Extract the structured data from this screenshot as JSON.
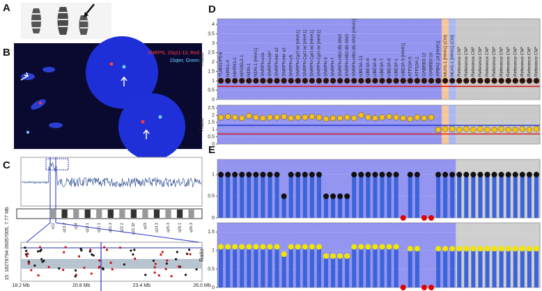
{
  "panels": {
    "a": {
      "label": "A"
    },
    "b": {
      "label": "B",
      "legend": [
        {
          "text": "SNRPN, 15q11-13, Red",
          "color": "#ff3b3b"
        },
        {
          "text": "15qter, Green",
          "color": "#6fd3ff"
        }
      ]
    },
    "c": {
      "label": "C",
      "bands": [
        "q12",
        "q13.2",
        "q14",
        "q15.1",
        "q21.1",
        "q21.3",
        "q22.2",
        "q22.32",
        "q23",
        "q24.3",
        "q25.3",
        "q26.1",
        "q26.3"
      ],
      "axis_labels": [
        "18.2 Mb",
        "20.8 Mb",
        "23.4 Mb",
        "26.0 Mb"
      ],
      "region": "15: 18279794-26057005, 7.77 Mb"
    }
  },
  "chart_data": [
    {
      "type": "dot",
      "panel_label": "D",
      "y_label": "Ratio",
      "categories": [
        "TUBGCP5-8",
        "NIPA1-4",
        "MKRN3-1",
        "MAGEL2-1",
        "NDN-1",
        "NDN-1 [HHA1]",
        "SNRPN-u1b",
        "SNRPN-u1b*",
        "SNRPN-intr u2",
        "SNRPN-intr u2",
        "SNRPN-u5",
        "SNRPN-CpG isl [HHA1]",
        "SNRPN-CpG isl [HHA1]",
        "SNRPN-CpG isl [HHA1]",
        "SNRPN-CpG isl [HHA1]",
        "SNRPN-3",
        "SNRPN-7",
        "SNRPN-HB2-85-SNO",
        "SNRPN-HB2-85-SNO",
        "SNRPN-HB2-85-SNO [HHA1]",
        "UBE3A-13",
        "UBE3A-9",
        "UBE3A-8",
        "UBE3A-7",
        "UBE3A-6",
        "UBE3A-1",
        "UBE3A-5 [HHA1]",
        "ATP10A-5",
        "ATP10A-1",
        "GABRB3-12",
        "GABRB3-10",
        "APBA2-14 [HHA1]",
        "MLH1-1 [HHA1] (Ctrl)",
        "MLH1-1 [HHA1] (Ctrl)",
        "Reference CM*",
        "Reference CM*",
        "Reference CM*",
        "Reference CM*",
        "Reference CM*",
        "Reference CM*",
        "Reference CM*",
        "Reference CM*",
        "Reference CM*",
        "Reference CM*",
        "Reference CM*",
        "Reference CM*"
      ],
      "band_colors": [
        "#9395f0",
        "#9395f0",
        "#9395f0",
        "#9395f0",
        "#9395f0",
        "#9395f0",
        "#9395f0",
        "#9395f0",
        "#9395f0",
        "#9395f0",
        "#9395f0",
        "#9395f0",
        "#9395f0",
        "#9395f0",
        "#9395f0",
        "#9395f0",
        "#9395f0",
        "#9395f0",
        "#9395f0",
        "#9395f0",
        "#9395f0",
        "#9395f0",
        "#9395f0",
        "#9395f0",
        "#9395f0",
        "#9395f0",
        "#9395f0",
        "#9395f0",
        "#9395f0",
        "#9395f0",
        "#9395f0",
        "#9395f0",
        "#f6c69b",
        "#aab8f4",
        "#c9c9c9",
        "#c9c9c9",
        "#c9c9c9",
        "#c9c9c9",
        "#c9c9c9",
        "#c9c9c9",
        "#c9c9c9",
        "#c9c9c9",
        "#c9c9c9",
        "#c9c9c9",
        "#c9c9c9",
        "#c9c9c9"
      ],
      "ylim": [
        0,
        4.3
      ],
      "yticks": [
        0,
        0.5,
        1,
        1.5,
        2,
        2.5,
        3,
        3.5,
        4
      ],
      "grid": true,
      "threshold_lines": [
        {
          "value": 0.7,
          "color": "#e01010"
        }
      ],
      "series": [
        {
          "color": "#2a1010",
          "values": [
            1,
            1,
            1,
            1,
            1,
            1,
            1,
            1,
            1,
            1,
            1,
            1,
            1,
            1,
            1,
            1,
            1,
            1,
            1,
            1,
            1,
            1,
            1,
            1,
            1,
            1,
            1,
            1,
            1,
            1,
            1,
            1,
            1,
            1,
            1,
            1,
            1,
            1,
            1,
            1,
            1,
            1,
            1,
            1,
            1,
            1
          ]
        }
      ]
    },
    {
      "type": "dot",
      "y_label": "Ratio",
      "band_colors": [
        "#9395f0",
        "#9395f0",
        "#9395f0",
        "#9395f0",
        "#9395f0",
        "#9395f0",
        "#9395f0",
        "#9395f0",
        "#9395f0",
        "#9395f0",
        "#9395f0",
        "#9395f0",
        "#9395f0",
        "#9395f0",
        "#9395f0",
        "#9395f0",
        "#9395f0",
        "#9395f0",
        "#9395f0",
        "#9395f0",
        "#9395f0",
        "#9395f0",
        "#9395f0",
        "#9395f0",
        "#9395f0",
        "#9395f0",
        "#9395f0",
        "#9395f0",
        "#9395f0",
        "#9395f0",
        "#9395f0",
        "#9395f0",
        "#f6c69b",
        "#aab8f4",
        "#c9c9c9",
        "#c9c9c9",
        "#c9c9c9",
        "#c9c9c9",
        "#c9c9c9",
        "#c9c9c9",
        "#c9c9c9",
        "#c9c9c9",
        "#c9c9c9",
        "#c9c9c9",
        "#c9c9c9",
        "#c9c9c9"
      ],
      "ylim": [
        0,
        2.7
      ],
      "yticks": [
        0,
        0.5,
        1,
        1.5,
        2,
        2.5
      ],
      "grid": true,
      "threshold_lines": [
        {
          "value": 0.7,
          "color": "#e01010"
        },
        {
          "value": 1.3,
          "color": "#1a2fd0"
        }
      ],
      "series": [
        {
          "color": "#f4c21a",
          "values": [
            1.85,
            1.9,
            1.85,
            1.8,
            1.95,
            1.85,
            1.8,
            1.85,
            1.85,
            1.9,
            1.8,
            1.85,
            1.85,
            1.9,
            1.85,
            1.75,
            1.8,
            1.8,
            1.85,
            1.8,
            2.0,
            1.85,
            1.8,
            1.85,
            1.9,
            1.85,
            1.8,
            1.75,
            1.85,
            1.8,
            1.85,
            1.0,
            1.05,
            1.05,
            1.0,
            1.05,
            1.0,
            1.05,
            1.0,
            1.0,
            1.05,
            1.0,
            1.0,
            1.05,
            1.0,
            1.05
          ]
        }
      ]
    },
    {
      "type": "bar",
      "panel_label": "E",
      "band_colors": [
        "#9395f0",
        "#9395f0",
        "#9395f0",
        "#9395f0",
        "#9395f0",
        "#9395f0",
        "#9395f0",
        "#9395f0",
        "#9395f0",
        "#9395f0",
        "#9395f0",
        "#9395f0",
        "#9395f0",
        "#9395f0",
        "#9395f0",
        "#9395f0",
        "#9395f0",
        "#9395f0",
        "#9395f0",
        "#9395f0",
        "#9395f0",
        "#9395f0",
        "#9395f0",
        "#9395f0",
        "#9395f0",
        "#9395f0",
        "#9395f0",
        "#9395f0",
        "#9395f0",
        "#9395f0",
        "#9395f0",
        "#9395f0",
        "#9395f0",
        "#9395f0",
        "#cfcfcf",
        "#cfcfcf",
        "#cfcfcf",
        "#cfcfcf",
        "#cfcfcf",
        "#cfcfcf",
        "#cfcfcf",
        "#cfcfcf",
        "#cfcfcf",
        "#cfcfcf",
        "#cfcfcf",
        "#cfcfcf"
      ],
      "ylim": [
        0,
        1.35
      ],
      "yticks": [
        0,
        0.5,
        1
      ],
      "grid": true,
      "bar_color": "#3d63d8",
      "series": [
        {
          "color": "#111111",
          "values": [
            1,
            1,
            1,
            1,
            1,
            1,
            1,
            1,
            1,
            0.5,
            1,
            1,
            1,
            1,
            1,
            0.5,
            0.5,
            0.5,
            0.5,
            1,
            1,
            1,
            1,
            1,
            1,
            1,
            0,
            1,
            1,
            0,
            0,
            1,
            1,
            1,
            1,
            1,
            1,
            1,
            1,
            1,
            1,
            1,
            1,
            1,
            1,
            1
          ],
          "point_colors": [
            "#111111",
            "#111111",
            "#111111",
            "#111111",
            "#111111",
            "#111111",
            "#111111",
            "#111111",
            "#111111",
            "#111111",
            "#111111",
            "#111111",
            "#111111",
            "#111111",
            "#111111",
            "#111111",
            "#111111",
            "#111111",
            "#111111",
            "#111111",
            "#111111",
            "#111111",
            "#111111",
            "#111111",
            "#111111",
            "#111111",
            "#e00000",
            "#111111",
            "#111111",
            "#e00000",
            "#e00000",
            "#111111",
            "#111111",
            "#111111",
            "#111111",
            "#111111",
            "#111111",
            "#111111",
            "#111111",
            "#111111",
            "#111111",
            "#111111",
            "#111111",
            "#111111",
            "#111111",
            "#111111"
          ]
        }
      ]
    },
    {
      "type": "bar",
      "y_label": "Ratio",
      "band_colors": [
        "#9395f0",
        "#9395f0",
        "#9395f0",
        "#9395f0",
        "#9395f0",
        "#9395f0",
        "#9395f0",
        "#9395f0",
        "#9395f0",
        "#9395f0",
        "#9395f0",
        "#9395f0",
        "#9395f0",
        "#9395f0",
        "#9395f0",
        "#9395f0",
        "#9395f0",
        "#9395f0",
        "#9395f0",
        "#9395f0",
        "#9395f0",
        "#9395f0",
        "#9395f0",
        "#9395f0",
        "#9395f0",
        "#9395f0",
        "#9395f0",
        "#9395f0",
        "#9395f0",
        "#9395f0",
        "#9395f0",
        "#9395f0",
        "#9395f0",
        "#9395f0",
        "#cfcfcf",
        "#cfcfcf",
        "#cfcfcf",
        "#cfcfcf",
        "#cfcfcf",
        "#cfcfcf",
        "#cfcfcf",
        "#cfcfcf",
        "#cfcfcf",
        "#cfcfcf",
        "#cfcfcf",
        "#cfcfcf"
      ],
      "ylim": [
        0,
        1.75
      ],
      "yticks": [
        0,
        0.5,
        1,
        1.5
      ],
      "grid": true,
      "bar_color": "#3d63d8",
      "series": [
        {
          "color": "#f2e600",
          "values": [
            1.1,
            1.1,
            1.1,
            1.1,
            1.1,
            1.1,
            1.1,
            1.1,
            1.1,
            0.9,
            1.1,
            1.1,
            1.1,
            1.1,
            1.1,
            0.85,
            0.85,
            0.85,
            0.85,
            1.1,
            1.1,
            1.1,
            1.1,
            1.1,
            1.1,
            1.1,
            0,
            1.05,
            1.05,
            0,
            0,
            1.05,
            1.05,
            1.05,
            1.05,
            1.05,
            1.05,
            1.05,
            1.05,
            1.05,
            1.05,
            1.05,
            1.05,
            1.05,
            1.05,
            1.05
          ],
          "point_colors": [
            "#f2e600",
            "#f2e600",
            "#f2e600",
            "#f2e600",
            "#f2e600",
            "#f2e600",
            "#f2e600",
            "#f2e600",
            "#f2e600",
            "#f2e600",
            "#f2e600",
            "#f2e600",
            "#f2e600",
            "#f2e600",
            "#f2e600",
            "#f2e600",
            "#f2e600",
            "#f2e600",
            "#f2e600",
            "#f2e600",
            "#f2e600",
            "#f2e600",
            "#f2e600",
            "#f2e600",
            "#f2e600",
            "#f2e600",
            "#e00000",
            "#f2e600",
            "#f2e600",
            "#e00000",
            "#e00000",
            "#f2e600",
            "#f2e600",
            "#f2e600",
            "#f2e600",
            "#f2e600",
            "#f2e600",
            "#f2e600",
            "#f2e600",
            "#f2e600",
            "#f2e600",
            "#f2e600",
            "#f2e600",
            "#f2e600",
            "#f2e600",
            "#f2e600"
          ]
        }
      ]
    }
  ]
}
